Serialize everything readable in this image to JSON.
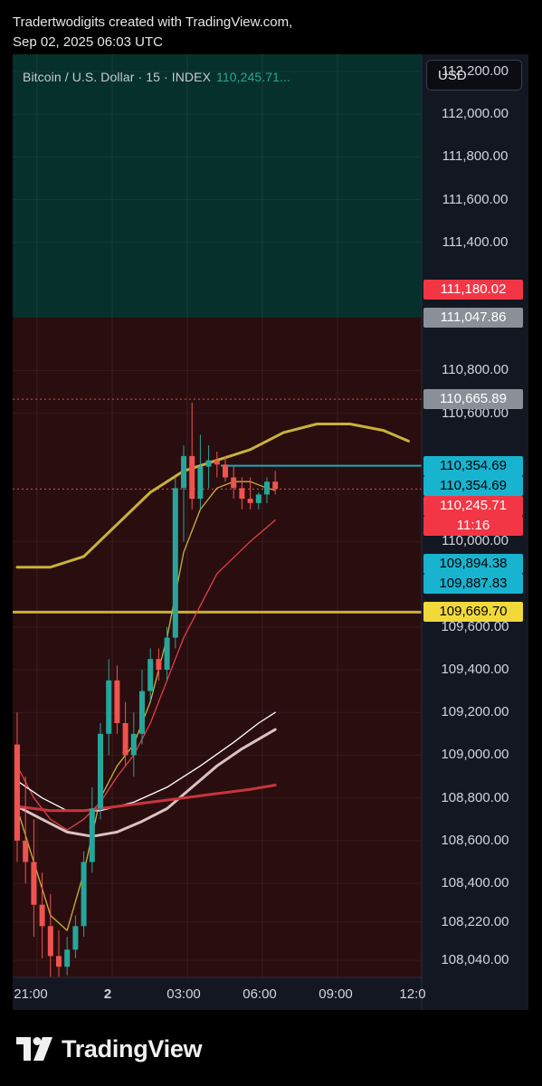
{
  "header": {
    "line1": "Tradertwodigits created with TradingView.com,",
    "line2": "Sep 02, 2025 06:03 UTC"
  },
  "symbol": {
    "name": "Bitcoin / U.S. Dollar · 15 · INDEX",
    "last_price": "110,245.71..."
  },
  "currency_button": "USD",
  "footer": {
    "brand": "TradingView",
    "logo_icon": "tradingview-logo-icon"
  },
  "colors": {
    "background": "#131722",
    "supply_zone": "#06302b",
    "demand_zone": "#2a0d0f",
    "bull": "#26a69a",
    "bear": "#ef5350",
    "ema_gold": "#c8b23a",
    "horizontal_level": "#c9b133",
    "cyan_level": "#22a7bd"
  },
  "price_labels": [
    {
      "text": "111,180.02",
      "value": 111180.02,
      "bg": "#f23645",
      "fg": "#ffffff"
    },
    {
      "text": "111,047.86",
      "value": 111047.86,
      "bg": "#8a8f98",
      "fg": "#ffffff"
    },
    {
      "text": "110,665.89",
      "value": 110665.89,
      "bg": "#8a8f98",
      "fg": "#ffffff"
    },
    {
      "text": "110,354.69",
      "value": 110354.69,
      "bg": "#18b3cf",
      "fg": "#000000"
    },
    {
      "text": "110,354.69",
      "value": 110354.69,
      "bg": "#18b3cf",
      "fg": "#000000"
    },
    {
      "text": "110,245.71",
      "value": 110245.71,
      "bg": "#f23645",
      "fg": "#ffffff"
    },
    {
      "text": "11:16",
      "value": null,
      "bg": "#f23645",
      "fg": "#ffffff"
    },
    {
      "text": "109,894.38",
      "value": 109894.38,
      "bg": "#18b3cf",
      "fg": "#000000"
    },
    {
      "text": "109,887.83",
      "value": 109887.83,
      "bg": "#18b3cf",
      "fg": "#000000"
    },
    {
      "text": "109,669.70",
      "value": 109669.7,
      "bg": "#f2d93a",
      "fg": "#000000"
    }
  ],
  "chart_data": {
    "type": "candlestick",
    "title": "Bitcoin / U.S. Dollar · 15 · INDEX",
    "interval": "15",
    "y_ticks": [
      "112,200.00",
      "112,000.00",
      "111,800.00",
      "111,600.00",
      "111,400.00",
      "110,800.00",
      "110,600.00",
      "110,000.00",
      "109,600.00",
      "109,400.00",
      "109,200.00",
      "109,000.00",
      "108,800.00",
      "108,600.00",
      "108,400.00",
      "108,220.00",
      "108,040.00"
    ],
    "y_tick_values": [
      112200,
      112000,
      111800,
      111600,
      111400,
      110800,
      110600,
      110000,
      109600,
      109400,
      109200,
      109000,
      108800,
      108600,
      108400,
      108220,
      108040
    ],
    "x_ticks": [
      "21:00",
      "2",
      "03:00",
      "06:00",
      "09:00",
      "12:0"
    ],
    "ylim": [
      107960,
      112280
    ],
    "zones": [
      {
        "name": "supply",
        "from": 111047.86,
        "to": 112280
      },
      {
        "name": "demand",
        "from": 107960,
        "to": 111047.86
      }
    ],
    "levels": [
      {
        "value": 110665.89,
        "style": "dotted",
        "color": "#d9534f"
      },
      {
        "value": 110354.69,
        "style": "solid",
        "color": "#22a7bd"
      },
      {
        "value": 110245.71,
        "style": "dotted",
        "color": "#d9534f"
      },
      {
        "value": 109669.7,
        "style": "solid",
        "color": "#c9b133"
      }
    ],
    "candles": [
      {
        "o": 109050,
        "h": 109200,
        "l": 108500,
        "c": 108600
      },
      {
        "o": 108600,
        "h": 108900,
        "l": 108400,
        "c": 108500
      },
      {
        "o": 108500,
        "h": 108700,
        "l": 108150,
        "c": 108300
      },
      {
        "o": 108300,
        "h": 108450,
        "l": 108050,
        "c": 108200
      },
      {
        "o": 108200,
        "h": 108350,
        "l": 107960,
        "c": 108060
      },
      {
        "o": 108060,
        "h": 108180,
        "l": 107960,
        "c": 108010
      },
      {
        "o": 108010,
        "h": 108150,
        "l": 107970,
        "c": 108090
      },
      {
        "o": 108090,
        "h": 108250,
        "l": 108050,
        "c": 108200
      },
      {
        "o": 108200,
        "h": 108550,
        "l": 108150,
        "c": 108500
      },
      {
        "o": 108500,
        "h": 108850,
        "l": 108450,
        "c": 108750
      },
      {
        "o": 108750,
        "h": 109150,
        "l": 108700,
        "c": 109100
      },
      {
        "o": 109100,
        "h": 109450,
        "l": 109000,
        "c": 109350
      },
      {
        "o": 109350,
        "h": 109420,
        "l": 109100,
        "c": 109150
      },
      {
        "o": 109150,
        "h": 109250,
        "l": 108950,
        "c": 109000
      },
      {
        "o": 109000,
        "h": 109200,
        "l": 108900,
        "c": 109100
      },
      {
        "o": 109100,
        "h": 109400,
        "l": 109050,
        "c": 109300
      },
      {
        "o": 109300,
        "h": 109500,
        "l": 109250,
        "c": 109450
      },
      {
        "o": 109450,
        "h": 109500,
        "l": 109350,
        "c": 109400
      },
      {
        "o": 109400,
        "h": 109600,
        "l": 109350,
        "c": 109550
      },
      {
        "o": 109550,
        "h": 110300,
        "l": 109500,
        "c": 110250
      },
      {
        "o": 110250,
        "h": 110450,
        "l": 110000,
        "c": 110400
      },
      {
        "o": 110400,
        "h": 110650,
        "l": 110150,
        "c": 110200
      },
      {
        "o": 110200,
        "h": 110500,
        "l": 110150,
        "c": 110350
      },
      {
        "o": 110350,
        "h": 110450,
        "l": 110250,
        "c": 110380
      },
      {
        "o": 110380,
        "h": 110420,
        "l": 110300,
        "c": 110360
      },
      {
        "o": 110360,
        "h": 110400,
        "l": 110280,
        "c": 110300
      },
      {
        "o": 110300,
        "h": 110350,
        "l": 110200,
        "c": 110250
      },
      {
        "o": 110250,
        "h": 110300,
        "l": 110150,
        "c": 110200
      },
      {
        "o": 110200,
        "h": 110300,
        "l": 110150,
        "c": 110180
      },
      {
        "o": 110180,
        "h": 110230,
        "l": 110150,
        "c": 110220
      },
      {
        "o": 110220,
        "h": 110300,
        "l": 110180,
        "c": 110280
      },
      {
        "o": 110280,
        "h": 110330,
        "l": 110220,
        "c": 110246
      }
    ],
    "moving_averages": [
      {
        "color": "#c8b23a",
        "width": 3,
        "values": [
          [
            0,
            109880
          ],
          [
            4,
            109880
          ],
          [
            8,
            109930
          ],
          [
            12,
            110080
          ],
          [
            16,
            110230
          ],
          [
            20,
            110330
          ],
          [
            24,
            110380
          ],
          [
            28,
            110430
          ],
          [
            32,
            110510
          ],
          [
            36,
            110550
          ],
          [
            40,
            110550
          ],
          [
            44,
            110520
          ],
          [
            47,
            110470
          ]
        ]
      },
      {
        "color": "#c8b23a",
        "width": 1.3,
        "values": [
          [
            0,
            108750
          ],
          [
            2,
            108500
          ],
          [
            4,
            108250
          ],
          [
            6,
            108180
          ],
          [
            8,
            108450
          ],
          [
            10,
            108800
          ],
          [
            12,
            108950
          ],
          [
            14,
            109050
          ],
          [
            16,
            109250
          ],
          [
            18,
            109550
          ],
          [
            20,
            109950
          ],
          [
            22,
            110150
          ],
          [
            24,
            110250
          ],
          [
            26,
            110280
          ],
          [
            28,
            110280
          ],
          [
            30,
            110250
          ],
          [
            31,
            110240
          ]
        ]
      },
      {
        "color": "#e0404a",
        "width": 1.3,
        "values": [
          [
            0,
            108950
          ],
          [
            2,
            108800
          ],
          [
            4,
            108700
          ],
          [
            6,
            108650
          ],
          [
            8,
            108700
          ],
          [
            10,
            108780
          ],
          [
            12,
            108900
          ],
          [
            14,
            109000
          ],
          [
            16,
            109150
          ],
          [
            18,
            109350
          ],
          [
            20,
            109550
          ],
          [
            24,
            109850
          ],
          [
            28,
            110000
          ],
          [
            31,
            110100
          ]
        ]
      },
      {
        "color": "#ffffff",
        "width": 1.3,
        "values": [
          [
            0,
            108880
          ],
          [
            3,
            108800
          ],
          [
            6,
            108740
          ],
          [
            10,
            108740
          ],
          [
            14,
            108780
          ],
          [
            18,
            108850
          ],
          [
            22,
            108950
          ],
          [
            26,
            109060
          ],
          [
            29,
            109150
          ],
          [
            31,
            109200
          ]
        ]
      },
      {
        "color": "#d9c2c2",
        "width": 3,
        "values": [
          [
            0,
            108760
          ],
          [
            3,
            108700
          ],
          [
            6,
            108640
          ],
          [
            9,
            108620
          ],
          [
            12,
            108640
          ],
          [
            15,
            108690
          ],
          [
            18,
            108750
          ],
          [
            21,
            108850
          ],
          [
            24,
            108950
          ],
          [
            27,
            109030
          ],
          [
            31,
            109120
          ]
        ]
      },
      {
        "color": "#c9343e",
        "width": 3,
        "values": [
          [
            0,
            108760
          ],
          [
            4,
            108740
          ],
          [
            8,
            108740
          ],
          [
            12,
            108760
          ],
          [
            16,
            108780
          ],
          [
            20,
            108800
          ],
          [
            24,
            108820
          ],
          [
            28,
            108840
          ],
          [
            31,
            108860
          ]
        ]
      }
    ]
  }
}
